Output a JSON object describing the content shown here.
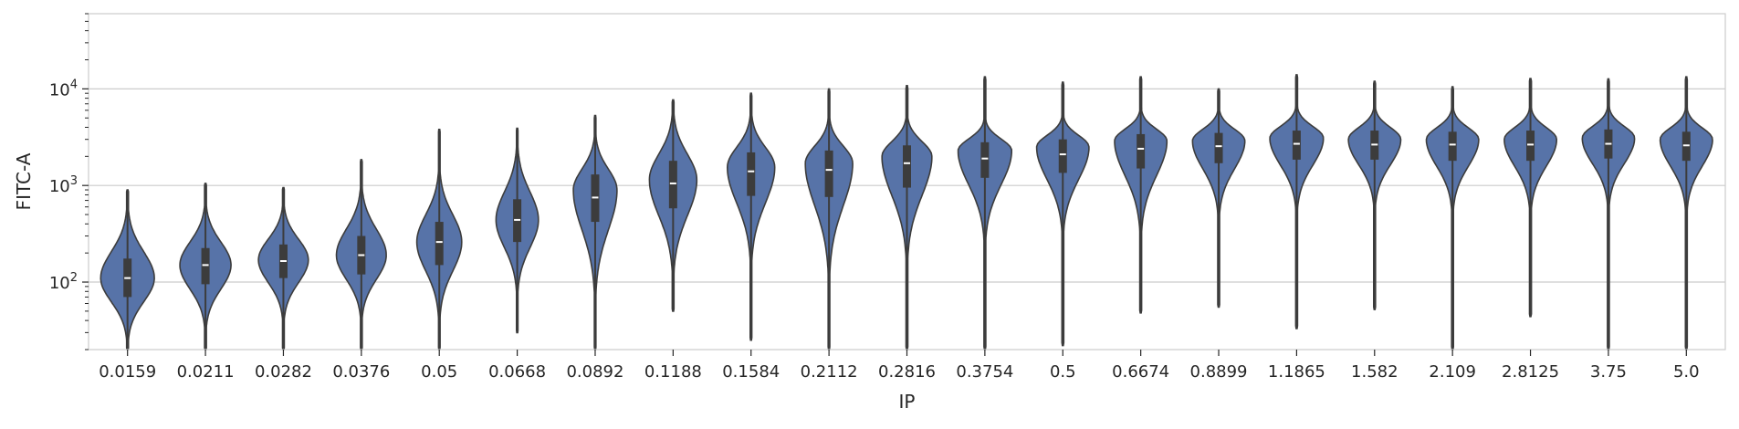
{
  "chart_data": {
    "type": "violin",
    "xlabel": "IP",
    "ylabel": "FITC-A",
    "yscale": "log",
    "ylim": [
      20,
      60000
    ],
    "y_ticks": [
      {
        "value": 100,
        "base": "10",
        "exp": "2"
      },
      {
        "value": 1000,
        "base": "10",
        "exp": "3"
      },
      {
        "value": 10000,
        "base": "10",
        "exp": "4"
      }
    ],
    "grid": "horizontal",
    "color": "#5773a8",
    "edge_color": "#3c3c3c",
    "median_color": "#ffffff",
    "categories": [
      "0.0159",
      "0.0211",
      "0.0282",
      "0.0376",
      "0.05",
      "0.0668",
      "0.0892",
      "0.1188",
      "0.1584",
      "0.2112",
      "0.2816",
      "0.3754",
      "0.5",
      "0.6674",
      "0.8899",
      "1.1865",
      "1.582",
      "2.109",
      "2.8125",
      "3.75",
      "5.0"
    ],
    "violins": [
      {
        "min": 20,
        "q1": 70,
        "median": 110,
        "q3": 175,
        "max": 900,
        "mode": 110,
        "width": 0.86
      },
      {
        "min": 20,
        "q1": 95,
        "median": 150,
        "q3": 225,
        "max": 1050,
        "mode": 150,
        "width": 0.82
      },
      {
        "min": 20,
        "q1": 110,
        "median": 165,
        "q3": 245,
        "max": 950,
        "mode": 170,
        "width": 0.8
      },
      {
        "min": 20,
        "q1": 120,
        "median": 190,
        "q3": 300,
        "max": 1850,
        "mode": 190,
        "width": 0.8
      },
      {
        "min": 20,
        "q1": 150,
        "median": 260,
        "q3": 420,
        "max": 3800,
        "mode": 260,
        "width": 0.72
      },
      {
        "min": 30,
        "q1": 260,
        "median": 440,
        "q3": 720,
        "max": 3900,
        "mode": 440,
        "width": 0.68
      },
      {
        "min": 20,
        "q1": 420,
        "median": 750,
        "q3": 1300,
        "max": 5300,
        "mode": 900,
        "width": 0.7
      },
      {
        "min": 50,
        "q1": 580,
        "median": 1050,
        "q3": 1800,
        "max": 7700,
        "mode": 1150,
        "width": 0.76
      },
      {
        "min": 25,
        "q1": 780,
        "median": 1400,
        "q3": 2200,
        "max": 9000,
        "mode": 1550,
        "width": 0.76
      },
      {
        "min": 20,
        "q1": 760,
        "median": 1450,
        "q3": 2300,
        "max": 10000,
        "mode": 1700,
        "width": 0.76
      },
      {
        "min": 20,
        "q1": 950,
        "median": 1700,
        "q3": 2600,
        "max": 10800,
        "mode": 2000,
        "width": 0.8
      },
      {
        "min": 20,
        "q1": 1200,
        "median": 1900,
        "q3": 2800,
        "max": 13300,
        "mode": 2300,
        "width": 0.86
      },
      {
        "min": 22,
        "q1": 1350,
        "median": 2100,
        "q3": 3000,
        "max": 11700,
        "mode": 2500,
        "width": 0.84
      },
      {
        "min": 48,
        "q1": 1500,
        "median": 2400,
        "q3": 3400,
        "max": 13300,
        "mode": 2900,
        "width": 0.84
      },
      {
        "min": 55,
        "q1": 1700,
        "median": 2550,
        "q3": 3500,
        "max": 10000,
        "mode": 2900,
        "width": 0.84
      },
      {
        "min": 33,
        "q1": 1850,
        "median": 2700,
        "q3": 3700,
        "max": 14000,
        "mode": 3100,
        "width": 0.86
      },
      {
        "min": 52,
        "q1": 1850,
        "median": 2650,
        "q3": 3700,
        "max": 12000,
        "mode": 3000,
        "width": 0.84
      },
      {
        "min": 20,
        "q1": 1800,
        "median": 2650,
        "q3": 3600,
        "max": 10500,
        "mode": 3000,
        "width": 0.84
      },
      {
        "min": 44,
        "q1": 1800,
        "median": 2650,
        "q3": 3700,
        "max": 12800,
        "mode": 3000,
        "width": 0.84
      },
      {
        "min": 20,
        "q1": 1900,
        "median": 2700,
        "q3": 3800,
        "max": 12700,
        "mode": 3100,
        "width": 0.84
      },
      {
        "min": 20,
        "q1": 1800,
        "median": 2600,
        "q3": 3600,
        "max": 13300,
        "mode": 3000,
        "width": 0.84
      }
    ]
  }
}
